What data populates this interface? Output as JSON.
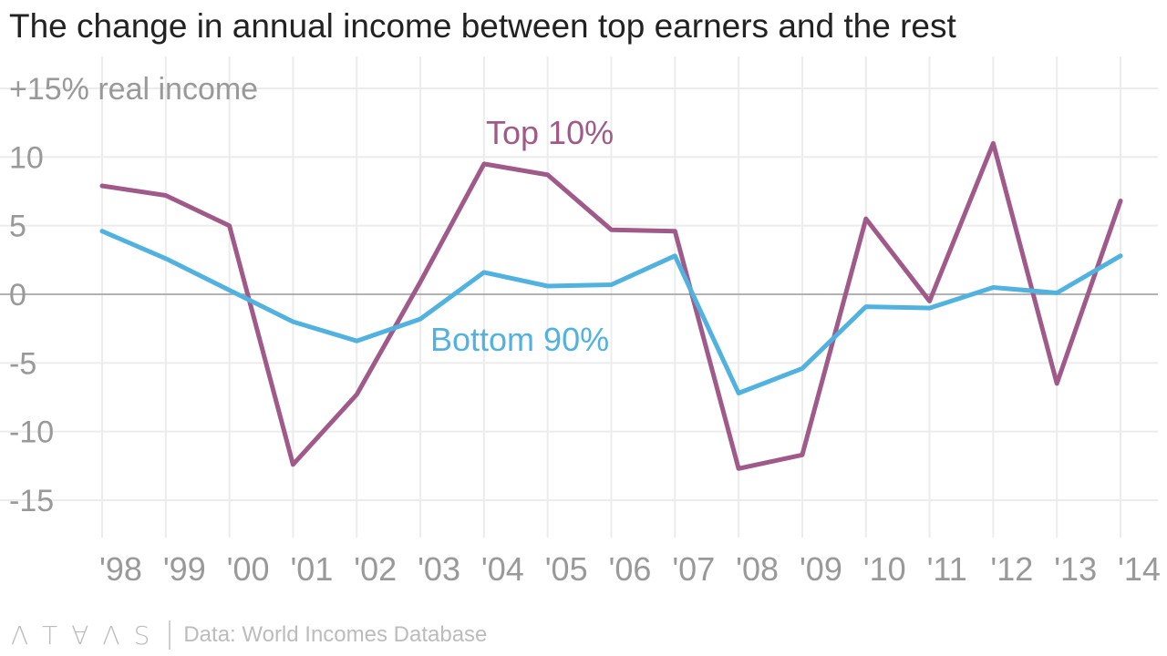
{
  "header": {
    "title": "The change in annual income between top earners and the rest"
  },
  "footer": {
    "logo": "ATLAS",
    "source": "Data: World Incomes Database"
  },
  "chart_data": {
    "type": "line",
    "title": "The change in annual income between top earners and the rest",
    "ylabel_top": "+15% real income",
    "yticks": [
      "10",
      "5",
      "0",
      "-5",
      "-10",
      "-15"
    ],
    "ylim": [
      -15,
      15
    ],
    "categories": [
      "'98",
      "'99",
      "'00",
      "'01",
      "'02",
      "'03",
      "'04",
      "'05",
      "'06",
      "'07",
      "'08",
      "'09",
      "'10",
      "'11",
      "'12",
      "'13",
      "'14"
    ],
    "series": [
      {
        "name": "Top 10%",
        "color": "#a05a8a",
        "values": [
          7.9,
          7.2,
          5.0,
          -12.4,
          -7.3,
          0.9,
          9.5,
          8.7,
          4.7,
          4.6,
          -12.7,
          -11.7,
          5.5,
          -0.5,
          11.0,
          -6.5,
          6.8
        ]
      },
      {
        "name": "Bottom 90%",
        "color": "#51b2e0",
        "values": [
          4.6,
          2.6,
          0.3,
          -2.0,
          -3.4,
          -1.8,
          1.6,
          0.6,
          0.7,
          2.8,
          -7.2,
          -5.4,
          -0.9,
          -1.0,
          0.5,
          0.1,
          2.8
        ]
      }
    ],
    "grid": true,
    "zero_line": true
  }
}
